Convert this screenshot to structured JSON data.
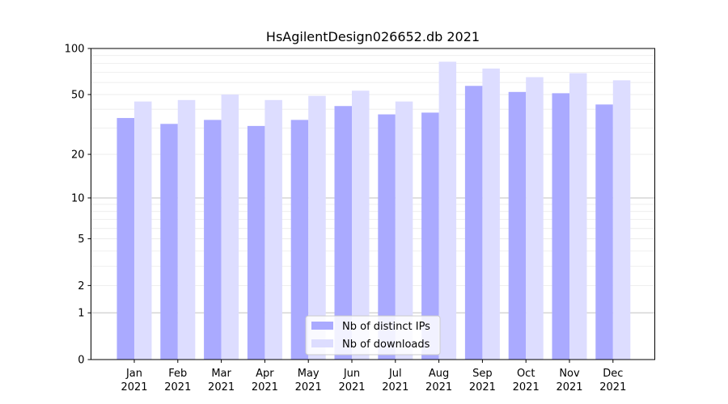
{
  "chart_data": {
    "type": "bar",
    "title": "HsAgilentDesign026652.db 2021",
    "xlabel": "",
    "ylabel": "",
    "y_scale": "symlog",
    "ylim": [
      0,
      100
    ],
    "y_ticks": [
      0,
      1,
      2,
      5,
      10,
      20,
      50,
      100
    ],
    "y_tick_labels": [
      "0",
      "1",
      "2",
      "5",
      "10",
      "20",
      "50",
      "100"
    ],
    "categories": [
      {
        "month": "Jan",
        "year": "2021"
      },
      {
        "month": "Feb",
        "year": "2021"
      },
      {
        "month": "Mar",
        "year": "2021"
      },
      {
        "month": "Apr",
        "year": "2021"
      },
      {
        "month": "May",
        "year": "2021"
      },
      {
        "month": "Jun",
        "year": "2021"
      },
      {
        "month": "Jul",
        "year": "2021"
      },
      {
        "month": "Aug",
        "year": "2021"
      },
      {
        "month": "Sep",
        "year": "2021"
      },
      {
        "month": "Oct",
        "year": "2021"
      },
      {
        "month": "Nov",
        "year": "2021"
      },
      {
        "month": "Dec",
        "year": "2021"
      }
    ],
    "series": [
      {
        "name": "Nb of distinct IPs",
        "color": "#aaaaff",
        "values": [
          35,
          32,
          34,
          31,
          34,
          42,
          37,
          38,
          57,
          52,
          51,
          43
        ]
      },
      {
        "name": "Nb of downloads",
        "color": "#ddddff",
        "values": [
          45,
          46,
          50,
          46,
          49,
          53,
          45,
          82,
          74,
          65,
          69,
          62
        ]
      }
    ],
    "grid": true,
    "legend_position": "bottom-center"
  }
}
